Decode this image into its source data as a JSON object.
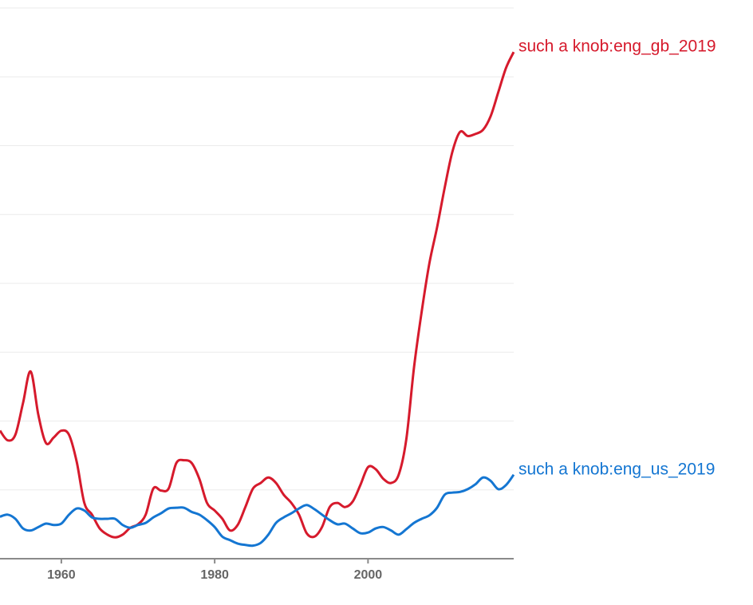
{
  "chart_data": {
    "type": "line",
    "x": [
      1952,
      1953,
      1954,
      1955,
      1956,
      1957,
      1958,
      1959,
      1960,
      1961,
      1962,
      1963,
      1964,
      1965,
      1966,
      1967,
      1968,
      1969,
      1970,
      1971,
      1972,
      1973,
      1974,
      1975,
      1976,
      1977,
      1978,
      1979,
      1980,
      1981,
      1982,
      1983,
      1984,
      1985,
      1986,
      1987,
      1988,
      1989,
      1990,
      1991,
      1992,
      1993,
      1994,
      1995,
      1996,
      1997,
      1998,
      1999,
      2000,
      2001,
      2002,
      2003,
      2004,
      2005,
      2006,
      2007,
      2008,
      2009,
      2010,
      2011,
      2012,
      2013,
      2014,
      2015,
      2016,
      2017,
      2018,
      2019
    ],
    "series": [
      {
        "name": "such a knob:eng_gb_2019",
        "color": "#d61a2c",
        "values": [
          1.86,
          1.72,
          1.8,
          2.26,
          2.72,
          2.09,
          1.68,
          1.76,
          1.86,
          1.8,
          1.41,
          0.81,
          0.64,
          0.44,
          0.35,
          0.31,
          0.35,
          0.45,
          0.5,
          0.64,
          1.02,
          0.99,
          1.02,
          1.39,
          1.43,
          1.39,
          1.16,
          0.81,
          0.7,
          0.58,
          0.41,
          0.49,
          0.75,
          1.02,
          1.1,
          1.18,
          1.1,
          0.93,
          0.81,
          0.64,
          0.37,
          0.32,
          0.46,
          0.75,
          0.81,
          0.75,
          0.83,
          1.07,
          1.33,
          1.3,
          1.16,
          1.1,
          1.22,
          1.74,
          2.78,
          3.59,
          4.29,
          4.81,
          5.39,
          5.91,
          6.2,
          6.14,
          6.17,
          6.23,
          6.43,
          6.78,
          7.13,
          7.36
        ]
      },
      {
        "name": "such a knob:eng_us_2019",
        "color": "#1476d2",
        "values": [
          0.61,
          0.64,
          0.58,
          0.44,
          0.41,
          0.46,
          0.51,
          0.49,
          0.51,
          0.64,
          0.73,
          0.7,
          0.6,
          0.58,
          0.58,
          0.58,
          0.49,
          0.45,
          0.49,
          0.52,
          0.6,
          0.66,
          0.73,
          0.74,
          0.74,
          0.68,
          0.64,
          0.56,
          0.46,
          0.32,
          0.27,
          0.22,
          0.2,
          0.19,
          0.23,
          0.35,
          0.52,
          0.6,
          0.66,
          0.73,
          0.78,
          0.72,
          0.64,
          0.56,
          0.5,
          0.51,
          0.44,
          0.37,
          0.38,
          0.44,
          0.46,
          0.41,
          0.35,
          0.43,
          0.52,
          0.58,
          0.63,
          0.74,
          0.93,
          0.96,
          0.97,
          1.01,
          1.08,
          1.18,
          1.13,
          1.01,
          1.07,
          1.22
        ]
      }
    ],
    "xlim": [
      1952,
      2019
    ],
    "xticks": [
      1960,
      1980,
      2000
    ],
    "ylim": [
      0,
      8
    ],
    "yticks": [
      1,
      2,
      3,
      4,
      5,
      6,
      7,
      8
    ],
    "grid": true
  }
}
